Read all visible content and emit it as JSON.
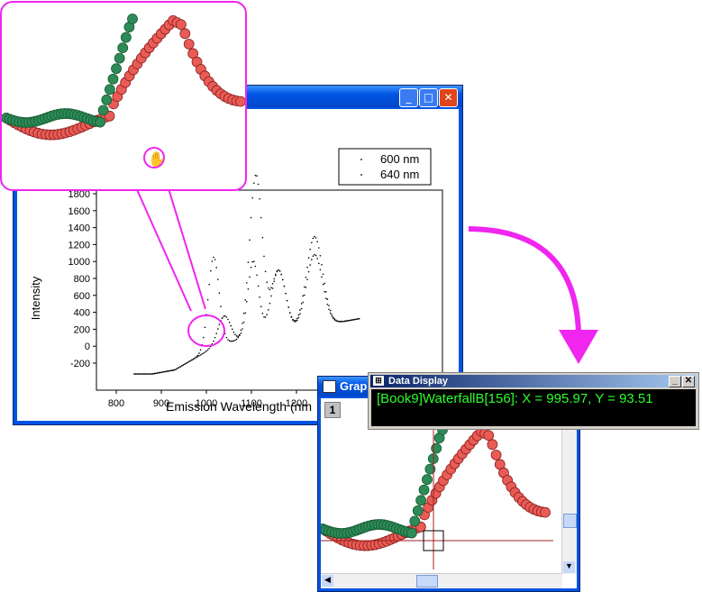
{
  "main_graph": {
    "legend": [
      "600 nm",
      "640 nm"
    ],
    "y_axis_label": "Intensity",
    "x_axis_label": "Emission Wavelength (nm",
    "y_ticks": [
      "1800",
      "1600",
      "1400",
      "1200",
      "1000",
      "800",
      "600",
      "400",
      "200",
      "0",
      "-200"
    ],
    "x_ticks": [
      "800",
      "900",
      "1000",
      "1100",
      "1200"
    ]
  },
  "second_graph": {
    "title": "Grap",
    "layer_label": "1"
  },
  "data_display": {
    "title": "Data Display",
    "readout": "[Book9]WaterfallB[156]:  X = 995.97, Y = 93.51"
  },
  "colors": {
    "accent": "#f025f0",
    "series_red": "#e95c55",
    "series_green": "#2e8b57",
    "readout_green": "#2bff2b"
  },
  "icons": [
    "minimize-icon",
    "maximize-icon",
    "close-icon",
    "hand-cursor-icon",
    "arrow-icon",
    "window-icon"
  ]
}
